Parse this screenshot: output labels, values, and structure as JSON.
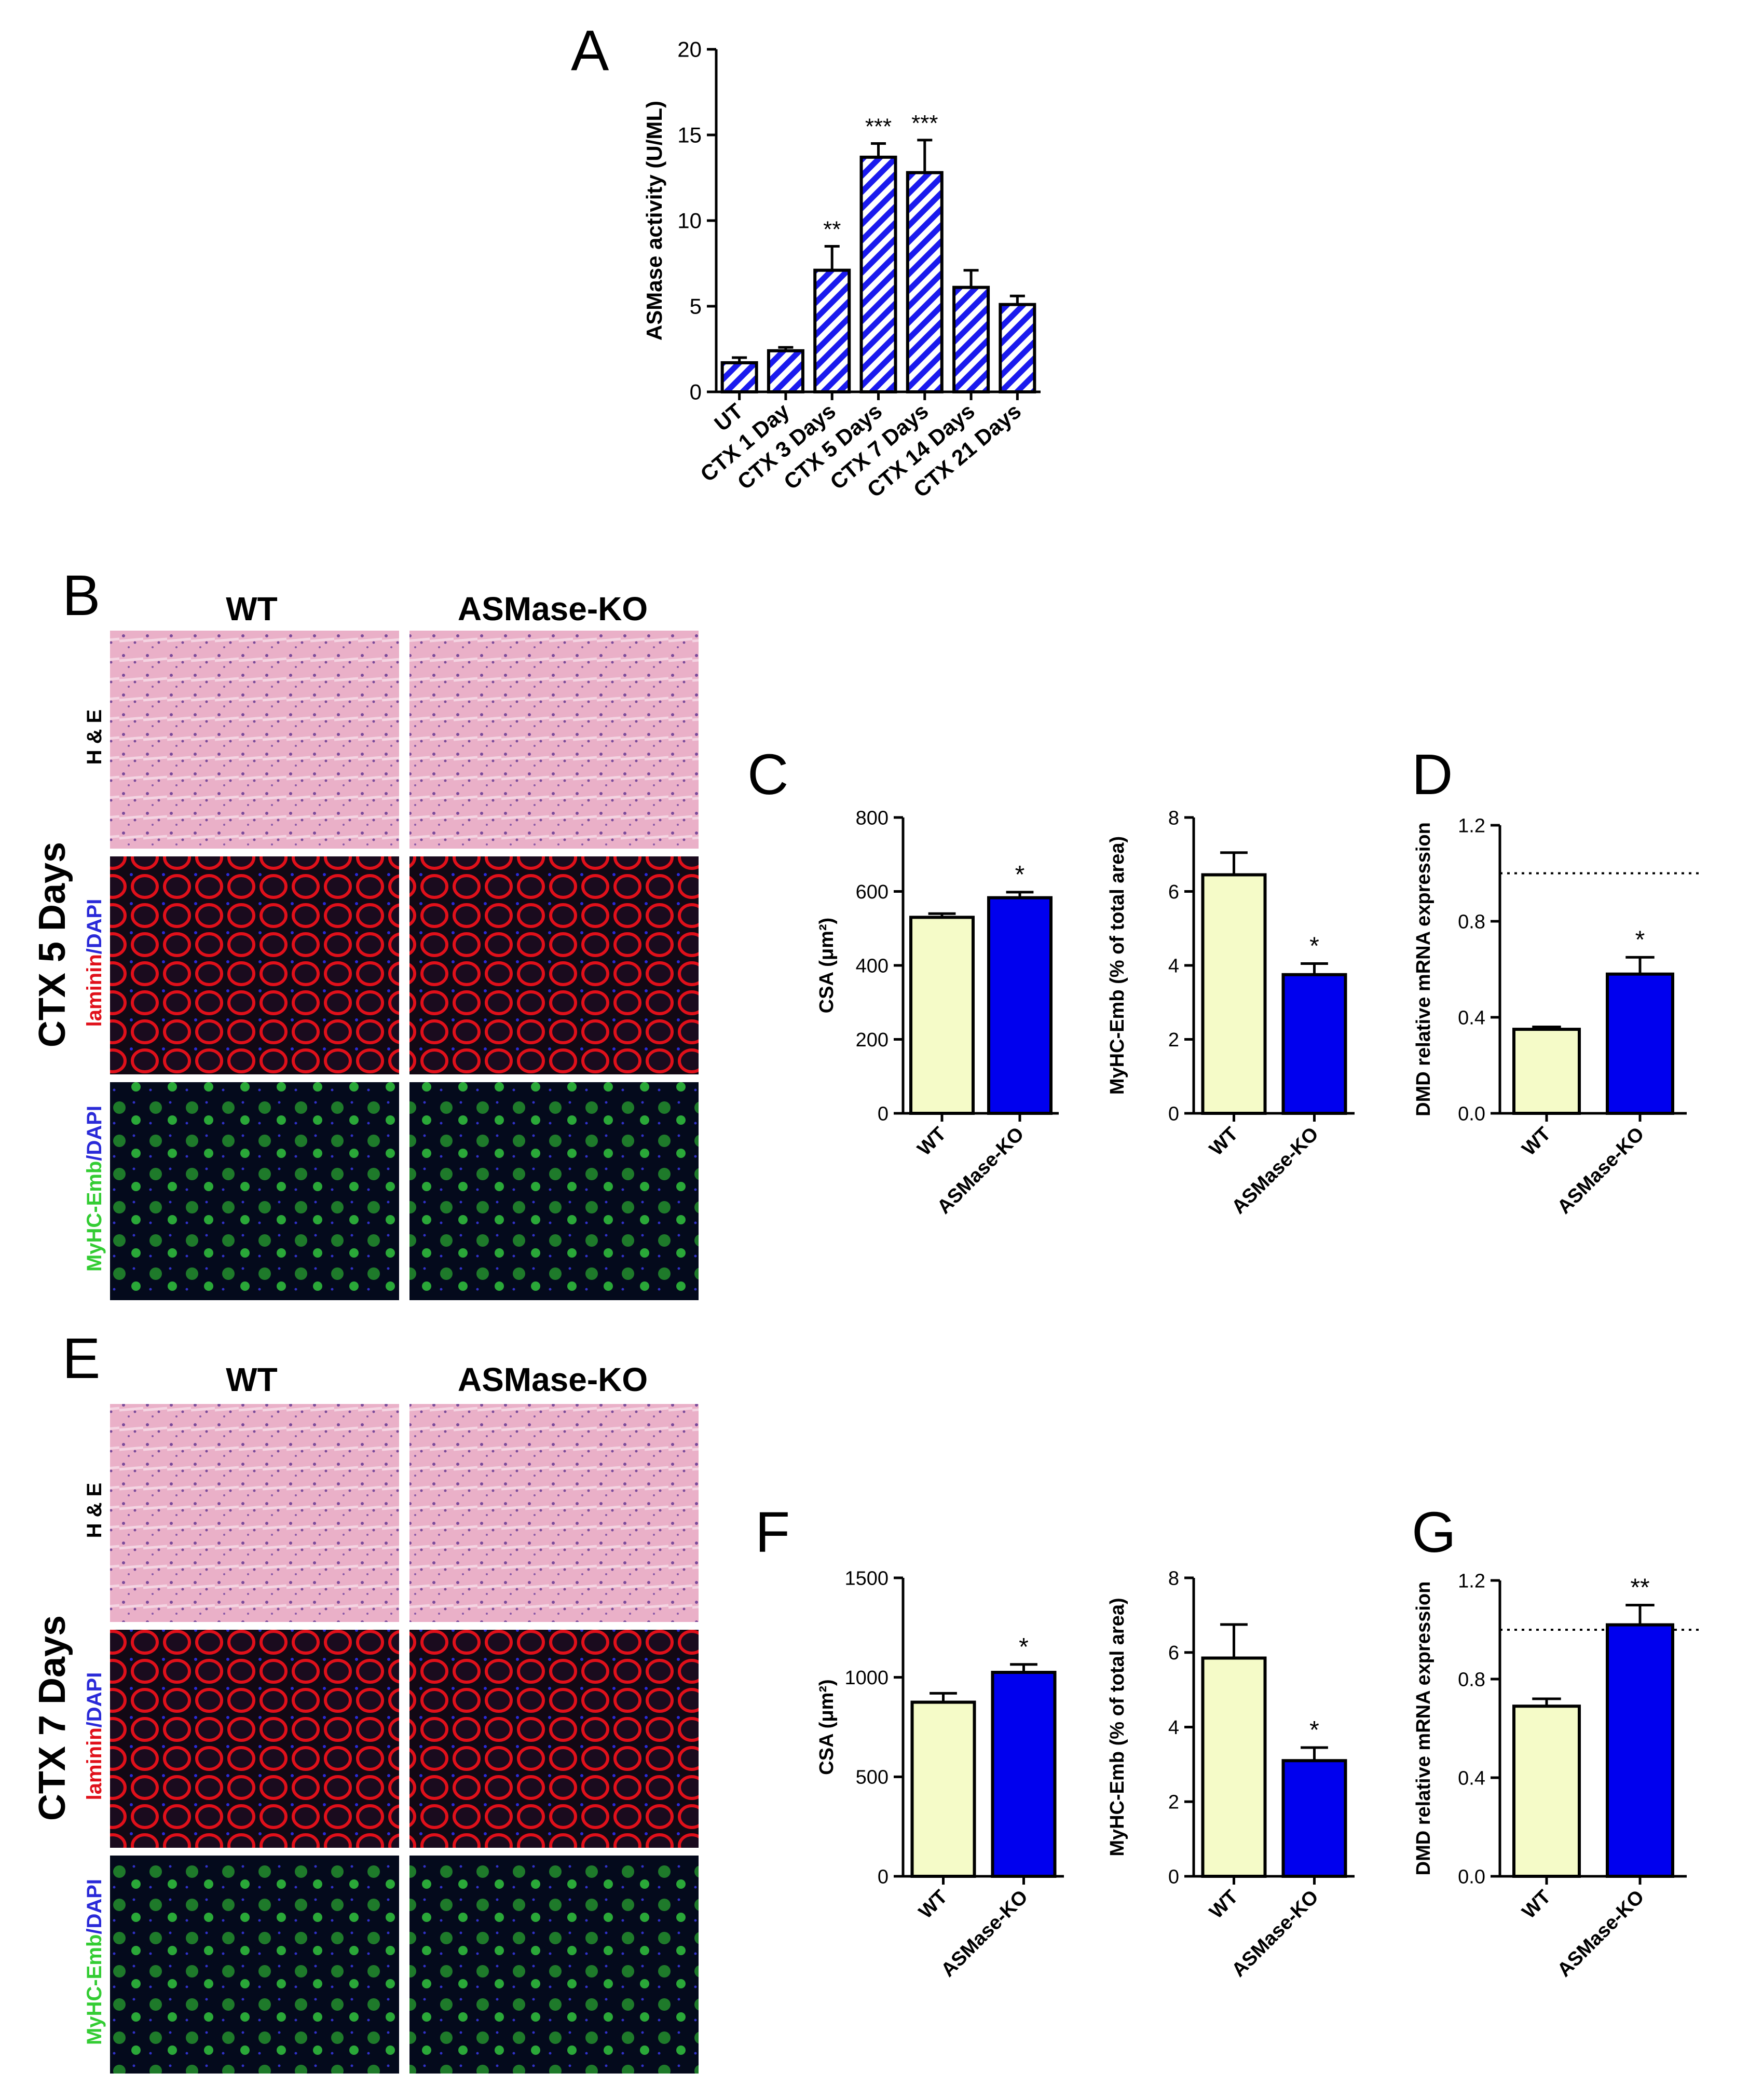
{
  "figure": {
    "panels": {
      "A": "A",
      "B": "B",
      "C": "C",
      "D": "D",
      "E": "E",
      "F": "F",
      "G": "G"
    },
    "colors": {
      "wt": "#f5fbc8",
      "ko": "#0000ee",
      "stripe": "#1a1aee",
      "he": "#e9a9c4",
      "lam": "#e0101a",
      "myhc": "#33cc33",
      "dapi": "#2a2ad8"
    }
  },
  "micro": {
    "wt_label": "WT",
    "ko_label": "ASMase-KO",
    "day5_label": "CTX 5 Days",
    "day7_label": "CTX 7 Days",
    "he_label": "H & E",
    "laminin_text": "laminin",
    "myhc_text": "MyHC-Emb",
    "dapi_text": "/DAPI"
  },
  "chart_data": [
    {
      "id": "A",
      "type": "bar",
      "title": "",
      "ylabel": "ASMase activity (U/ML)",
      "ylim": [
        0,
        20
      ],
      "yticks": [
        0,
        5,
        10,
        15,
        20
      ],
      "categories": [
        "UT",
        "CTX 1 Day",
        "CTX 3 Days",
        "CTX 5 Days",
        "CTX 7 Days",
        "CTX 14 Days",
        "CTX 21 Days"
      ],
      "values": [
        1.7,
        2.4,
        7.1,
        13.7,
        12.8,
        6.1,
        5.1
      ],
      "errors": [
        0.3,
        0.2,
        1.4,
        0.8,
        1.9,
        1.0,
        0.5
      ],
      "significance": [
        "",
        "",
        "**",
        "***",
        "***",
        "",
        ""
      ],
      "fill": "hatched-blue"
    },
    {
      "id": "C1",
      "type": "bar",
      "ylabel": "CSA (μm²)",
      "ylim": [
        0,
        800
      ],
      "yticks": [
        0,
        200,
        400,
        600,
        800
      ],
      "categories": [
        "WT",
        "ASMase-KO"
      ],
      "values": [
        530,
        583
      ],
      "errors": [
        10,
        15
      ],
      "significance": [
        "",
        "*"
      ]
    },
    {
      "id": "C2",
      "type": "bar",
      "ylabel": "MyHC-Emb (% of total area)",
      "ylim": [
        0,
        8
      ],
      "yticks": [
        0,
        2,
        4,
        6,
        8
      ],
      "categories": [
        "WT",
        "ASMase-KO"
      ],
      "values": [
        6.45,
        3.75
      ],
      "errors": [
        0.6,
        0.3
      ],
      "significance": [
        "",
        "*"
      ]
    },
    {
      "id": "D",
      "type": "bar",
      "ylabel": "DMD relative mRNA expression",
      "ylim": [
        0,
        1.2
      ],
      "yticks": [
        "0.0",
        "0.4",
        "0.8",
        "1.2"
      ],
      "categories": [
        "WT",
        "ASMase-KO"
      ],
      "values": [
        0.35,
        0.58
      ],
      "errors": [
        0.01,
        0.07
      ],
      "significance": [
        "",
        "*"
      ],
      "reference_line": 1.0
    },
    {
      "id": "F1",
      "type": "bar",
      "ylabel": "CSA (μm²)",
      "ylim": [
        0,
        1500
      ],
      "yticks": [
        0,
        500,
        1000,
        1500
      ],
      "categories": [
        "WT",
        "ASMase-KO"
      ],
      "values": [
        875,
        1025
      ],
      "errors": [
        45,
        40
      ],
      "significance": [
        "",
        "*"
      ]
    },
    {
      "id": "F2",
      "type": "bar",
      "ylabel": "MyHC-Emb (% of total area)",
      "ylim": [
        0,
        8
      ],
      "yticks": [
        0,
        2,
        4,
        6,
        8
      ],
      "categories": [
        "WT",
        "ASMase-KO"
      ],
      "values": [
        5.85,
        3.1
      ],
      "errors": [
        0.9,
        0.35
      ],
      "significance": [
        "",
        "*"
      ]
    },
    {
      "id": "G",
      "type": "bar",
      "ylabel": "DMD relative mRNA expression",
      "ylim": [
        0,
        1.2
      ],
      "yticks": [
        "0.0",
        "0.4",
        "0.8",
        "1.2"
      ],
      "categories": [
        "WT",
        "ASMase-KO"
      ],
      "values": [
        0.69,
        1.02
      ],
      "errors": [
        0.03,
        0.08
      ],
      "significance": [
        "",
        "**"
      ],
      "reference_line": 1.0
    }
  ]
}
